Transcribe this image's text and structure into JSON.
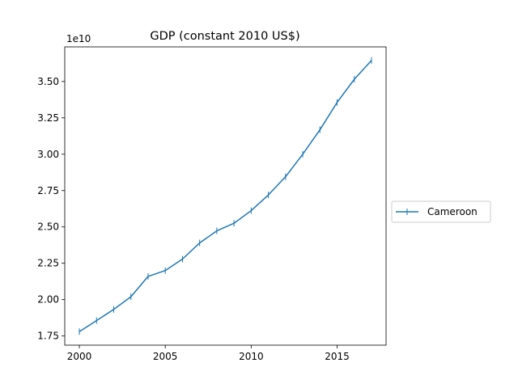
{
  "chart_data": {
    "type": "line",
    "title": "GDP (constant 2010 US$)",
    "xlabel": "",
    "ylabel": "",
    "y_scale_label": "1e10",
    "x": [
      2000,
      2001,
      2002,
      2003,
      2004,
      2005,
      2006,
      2007,
      2008,
      2009,
      2010,
      2011,
      2012,
      2013,
      2014,
      2015,
      2016,
      2017
    ],
    "series": [
      {
        "name": "Cameroon",
        "color": "#1f77b4",
        "values": [
          17800000000.0,
          18560000000.0,
          19330000000.0,
          20200000000.0,
          21600000000.0,
          22000000000.0,
          22790000000.0,
          23900000000.0,
          24730000000.0,
          25250000000.0,
          26120000000.0,
          27200000000.0,
          28450000000.0,
          30000000000.0,
          31680000000.0,
          33560000000.0,
          35150000000.0,
          36450000000.0
        ]
      }
    ],
    "x_ticks": [
      2000,
      2005,
      2010,
      2015
    ],
    "x_tick_labels": [
      "2000",
      "2005",
      "2010",
      "2015"
    ],
    "y_ticks": [
      17500000000.0,
      20000000000.0,
      22500000000.0,
      25000000000.0,
      27500000000.0,
      30000000000.0,
      32500000000.0,
      35000000000.0
    ],
    "y_tick_labels": [
      "1.75",
      "2.00",
      "2.25",
      "2.50",
      "2.75",
      "3.00",
      "3.25",
      "3.50"
    ],
    "xlim": [
      1999.15,
      2017.85
    ],
    "ylim": [
      16870000000.0,
      37380000000.0
    ],
    "grid": false,
    "legend_position": "center-right-outside"
  }
}
